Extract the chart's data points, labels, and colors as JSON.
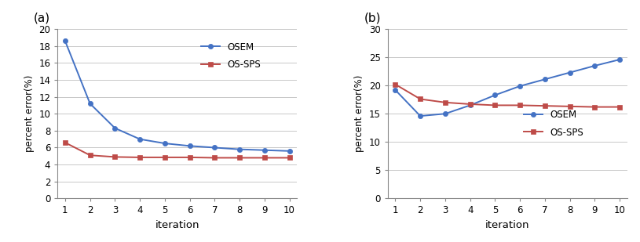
{
  "iterations": [
    1,
    2,
    3,
    4,
    5,
    6,
    7,
    8,
    9,
    10
  ],
  "a_osem": [
    18.6,
    11.2,
    8.3,
    7.0,
    6.5,
    6.2,
    6.0,
    5.8,
    5.7,
    5.6
  ],
  "a_ossps": [
    6.6,
    5.1,
    4.9,
    4.85,
    4.85,
    4.85,
    4.8,
    4.8,
    4.8,
    4.8
  ],
  "b_osem": [
    19.2,
    14.6,
    15.0,
    16.5,
    18.3,
    19.9,
    21.1,
    22.3,
    23.5,
    24.6
  ],
  "b_ossps": [
    20.2,
    17.6,
    17.0,
    16.7,
    16.5,
    16.5,
    16.4,
    16.3,
    16.2,
    16.2
  ],
  "osem_color": "#4472C4",
  "ossps_color": "#BE4B48",
  "osem_label": "OSEM",
  "ossps_label": "OS-SPS",
  "ylabel": "percent error(%)",
  "xlabel": "iteration",
  "a_ylim": [
    0,
    20
  ],
  "b_ylim": [
    0,
    30
  ],
  "a_yticks": [
    0,
    2,
    4,
    6,
    8,
    10,
    12,
    14,
    16,
    18,
    20
  ],
  "b_yticks": [
    0,
    5,
    10,
    15,
    20,
    25,
    30
  ],
  "label_a": "(a)",
  "label_b": "(b)",
  "bg_color": "#ffffff",
  "grid_color": "#c8c8c8",
  "spine_color": "#888888"
}
